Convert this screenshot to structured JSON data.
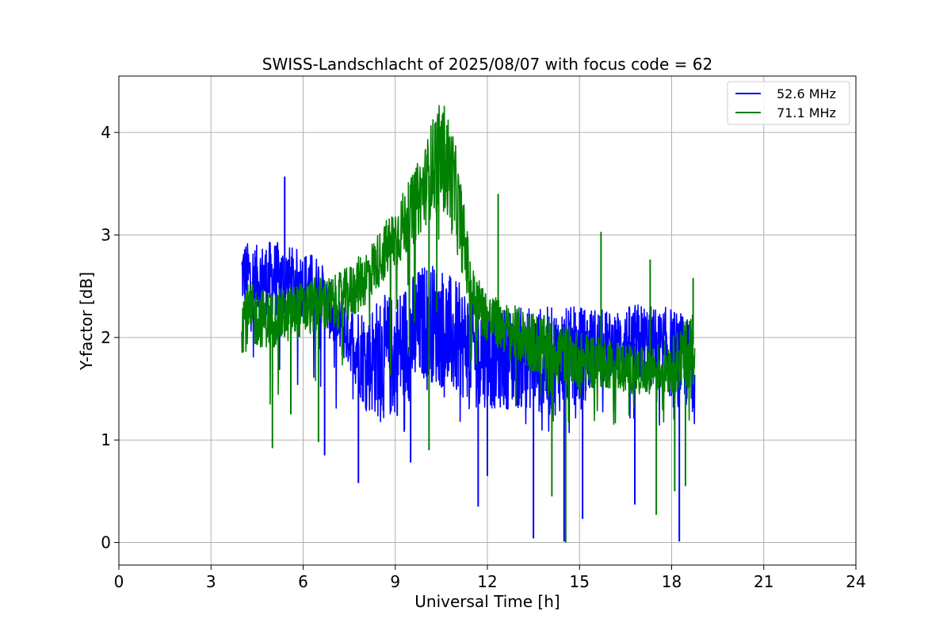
{
  "chart_data": {
    "type": "line",
    "title": "SWISS-Landschlacht of 2025/08/07 with focus code = 62",
    "xlabel": "Universal Time [h]",
    "ylabel": "Y-factor [dB]",
    "xlim": [
      0,
      24
    ],
    "ylim": [
      -0.22,
      4.55
    ],
    "xticks": [
      0,
      3,
      6,
      9,
      12,
      15,
      18,
      21,
      24
    ],
    "xtick_labels": [
      "0",
      "3",
      "6",
      "9",
      "12",
      "15",
      "18",
      "21",
      "24"
    ],
    "yticks": [
      0,
      1,
      2,
      3,
      4
    ],
    "ytick_labels": [
      "0",
      "1",
      "2",
      "3",
      "4"
    ],
    "grid": true,
    "legend_position": "top-right",
    "series": [
      {
        "name": "52.6 MHz",
        "color": "#0000ff",
        "x": [
          4.0,
          4.5,
          5.0,
          5.5,
          6.0,
          6.5,
          7.0,
          7.5,
          8.0,
          8.5,
          9.0,
          9.5,
          10.0,
          10.5,
          11.0,
          11.5,
          12.0,
          12.5,
          13.0,
          13.5,
          14.0,
          14.5,
          15.0,
          15.5,
          16.0,
          16.5,
          17.0,
          17.5,
          18.0,
          18.5,
          18.75
        ],
        "y_min": [
          2.3,
          2.25,
          2.2,
          2.2,
          2.2,
          2.2,
          1.9,
          1.7,
          1.3,
          1.2,
          1.2,
          1.4,
          1.6,
          1.5,
          1.4,
          1.4,
          1.3,
          1.3,
          1.3,
          1.3,
          1.2,
          1.3,
          1.35,
          1.5,
          1.6,
          1.6,
          1.5,
          1.5,
          1.4,
          1.3,
          1.3
        ],
        "y_max": [
          2.95,
          2.9,
          2.95,
          2.9,
          2.85,
          2.8,
          2.45,
          2.35,
          2.3,
          2.4,
          2.45,
          2.6,
          2.75,
          2.7,
          2.55,
          2.45,
          2.4,
          2.3,
          2.3,
          2.3,
          2.3,
          2.3,
          2.3,
          2.3,
          2.25,
          2.3,
          2.35,
          2.3,
          2.3,
          2.2,
          2.1
        ],
        "spikes": [
          [
            5.4,
            3.57
          ],
          [
            7.8,
            0.58
          ],
          [
            9.5,
            0.78
          ],
          [
            11.7,
            0.35
          ],
          [
            13.5,
            0.04
          ],
          [
            14.5,
            0.01
          ],
          [
            15.1,
            0.23
          ],
          [
            16.8,
            0.37
          ],
          [
            18.25,
            0.01
          ],
          [
            12.0,
            0.65
          ],
          [
            6.7,
            0.85
          ]
        ]
      },
      {
        "name": "71.1 MHz",
        "color": "#008000",
        "x": [
          4.0,
          4.5,
          5.0,
          5.5,
          6.0,
          6.5,
          7.0,
          7.5,
          8.0,
          8.5,
          9.0,
          9.5,
          10.0,
          10.3,
          10.6,
          10.9,
          11.2,
          11.5,
          12.0,
          12.5,
          13.0,
          13.5,
          14.0,
          14.5,
          15.0,
          15.5,
          16.0,
          16.5,
          17.0,
          17.5,
          18.0,
          18.5,
          18.75
        ],
        "y_min": [
          1.85,
          1.9,
          1.9,
          1.95,
          2.0,
          2.05,
          2.05,
          2.15,
          2.3,
          2.5,
          2.65,
          2.85,
          3.1,
          3.2,
          3.2,
          2.95,
          2.6,
          2.15,
          1.95,
          1.85,
          1.75,
          1.65,
          1.6,
          1.55,
          1.5,
          1.5,
          1.5,
          1.45,
          1.45,
          1.45,
          1.45,
          1.5,
          1.55
        ],
        "y_max": [
          2.55,
          2.5,
          2.45,
          2.5,
          2.55,
          2.6,
          2.6,
          2.7,
          2.85,
          3.05,
          3.3,
          3.55,
          3.9,
          4.25,
          4.3,
          4.0,
          3.4,
          2.7,
          2.45,
          2.35,
          2.3,
          2.25,
          2.2,
          2.15,
          2.05,
          2.05,
          2.0,
          1.95,
          1.9,
          1.95,
          2.0,
          2.2,
          2.35
        ],
        "spikes": [
          [
            5.0,
            0.92
          ],
          [
            5.6,
            1.25
          ],
          [
            6.5,
            0.98
          ],
          [
            12.35,
            3.4
          ],
          [
            14.1,
            0.45
          ],
          [
            14.55,
            0.0
          ],
          [
            15.7,
            3.03
          ],
          [
            17.3,
            2.76
          ],
          [
            17.5,
            0.27
          ],
          [
            18.1,
            0.5
          ],
          [
            18.45,
            0.55
          ],
          [
            18.7,
            2.58
          ],
          [
            10.1,
            0.9
          ]
        ]
      }
    ]
  }
}
